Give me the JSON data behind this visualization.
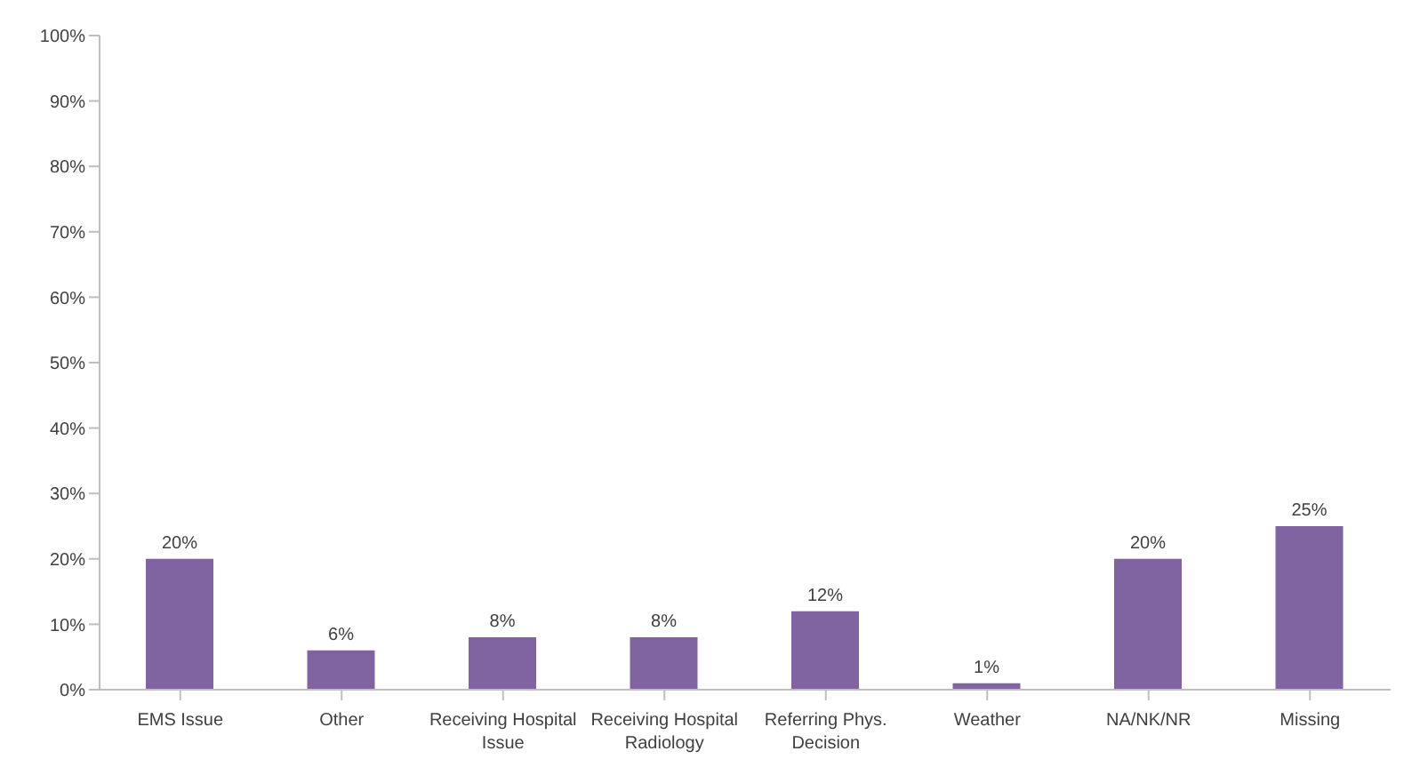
{
  "chart_data": {
    "type": "bar",
    "categories": [
      "EMS Issue",
      "Other",
      "Receiving Hospital Issue",
      "Receiving Hospital Radiology",
      "Referring Phys. Decision",
      "Weather",
      "NA/NK/NR",
      "Missing"
    ],
    "values": [
      20,
      6,
      8,
      8,
      12,
      1,
      20,
      25
    ],
    "value_labels": [
      "20%",
      "6%",
      "8%",
      "8%",
      "12%",
      "1%",
      "20%",
      "25%"
    ],
    "color": "#8064a2",
    "ylim": [
      0,
      100
    ],
    "yticks": [
      {
        "value": 0,
        "label": "0%"
      },
      {
        "value": 10,
        "label": "10%"
      },
      {
        "value": 20,
        "label": "20%"
      },
      {
        "value": 30,
        "label": "30%"
      },
      {
        "value": 40,
        "label": "40%"
      },
      {
        "value": 50,
        "label": "50%"
      },
      {
        "value": 60,
        "label": "60%"
      },
      {
        "value": 70,
        "label": "70%"
      },
      {
        "value": 80,
        "label": "80%"
      },
      {
        "value": 90,
        "label": "90%"
      },
      {
        "value": 100,
        "label": "100%"
      }
    ],
    "grid": false,
    "legend": false
  }
}
